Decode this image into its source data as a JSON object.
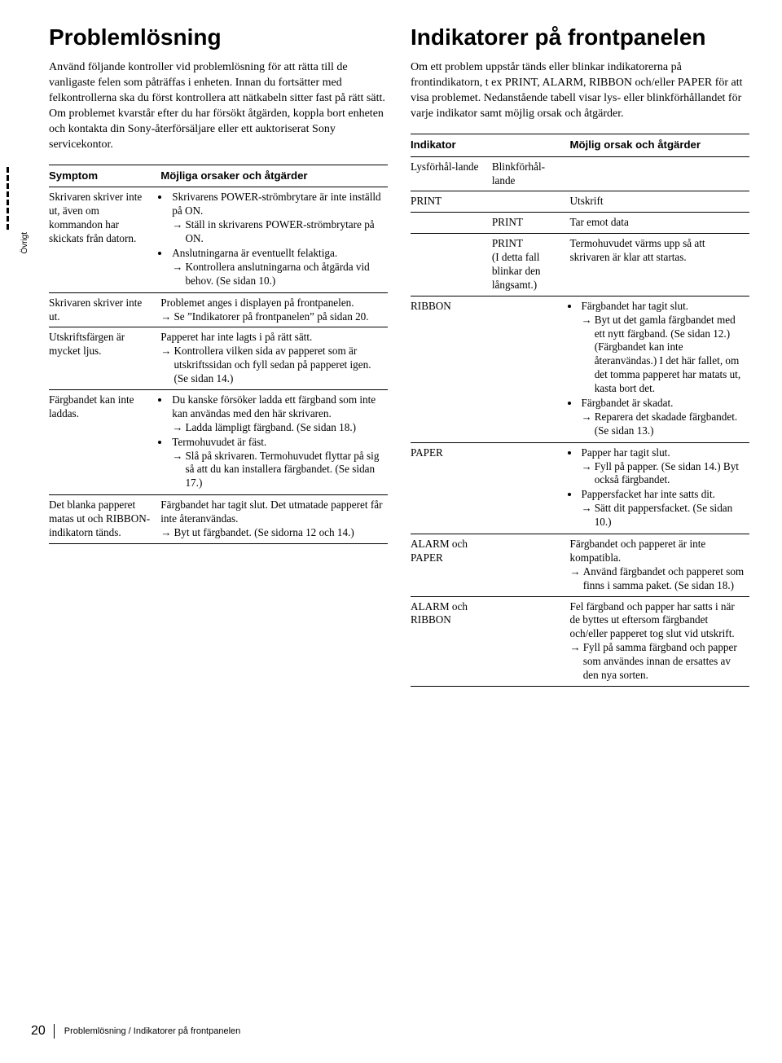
{
  "sidetab": "Övrigt",
  "left": {
    "title": "Problemlösning",
    "intro": "Använd följande kontroller vid problemlösning för att rätta till de vanligaste felen som påträffas i enheten. Innan du fortsätter med felkontrollerna ska du först kontrollera att nätkabeln sitter fast på rätt sätt. Om problemet kvarstår efter du har försökt åtgärden, koppla bort enheten och kontakta din Sony-återförsäljare eller ett auktoriserat Sony servicekontor.",
    "head_symptom": "Symptom",
    "head_cause": "Möjliga orsaker och åtgärder",
    "rows": [
      {
        "symptom": "Skrivaren skriver inte ut, även om kommandon har skickats från datorn.",
        "items": [
          {
            "type": "bullet",
            "text": "Skrivarens POWER-strömbrytare är inte inställd på ON."
          },
          {
            "type": "arrow",
            "text": "Ställ in skrivarens POWER-strömbrytare på ON."
          },
          {
            "type": "bullet",
            "text": "Anslutningarna är eventuellt felaktiga."
          },
          {
            "type": "arrow",
            "text": "Kontrollera anslutningarna och åtgärda vid behov. (Se sidan 10.)"
          }
        ]
      },
      {
        "symptom": "Skrivaren skriver inte ut.",
        "items": [
          {
            "type": "plain",
            "text": "Problemet anges i displayen på frontpanelen."
          },
          {
            "type": "arrow0",
            "text": "Se ”Indikatorer på frontpanelen” på sidan 20."
          }
        ]
      },
      {
        "symptom": "Utskriftsfärgen är mycket ljus.",
        "items": [
          {
            "type": "plain",
            "text": "Papperet har inte lagts i på rätt sätt."
          },
          {
            "type": "arrow0",
            "text": "Kontrollera vilken sida av papperet som är utskriftssidan och fyll sedan på papperet igen. (Se sidan 14.)"
          }
        ]
      },
      {
        "symptom": "Färgbandet kan inte laddas.",
        "items": [
          {
            "type": "bullet",
            "text": "Du kanske försöker ladda ett färgband som inte kan användas med den här skrivaren."
          },
          {
            "type": "arrow",
            "text": "Ladda lämpligt färgband. (Se sidan 18.)"
          },
          {
            "type": "bullet",
            "text": "Termohuvudet är fäst."
          },
          {
            "type": "arrow",
            "text": "Slå på skrivaren. Termohuvudet flyttar på sig så att du kan installera färgbandet. (Se sidan 17.)"
          }
        ]
      },
      {
        "symptom": "Det blanka papperet matas ut och RIBBON-indikatorn tänds.",
        "items": [
          {
            "type": "plain",
            "text": "Färgbandet har tagit slut. Det utmatade papperet får inte återanvändas."
          },
          {
            "type": "arrow0",
            "text": "Byt ut färgbandet. (Se sidorna 12 och 14.)"
          }
        ]
      }
    ]
  },
  "right": {
    "title": "Indikatorer på frontpanelen",
    "intro": "Om ett problem uppstår tänds eller blinkar indikatorerna på frontindikatorn, t ex PRINT, ALARM, RIBBON och/eller PAPER för att visa problemet. Nedanstående tabell visar lys- eller blinkförhållandet för varje indikator samt möjlig orsak och åtgärder.",
    "head_indicator": "Indikator",
    "head_cause": "Möjlig orsak och åtgärder",
    "sub1": "Lysförhål-lande",
    "sub2": "Blinkförhål-lande",
    "rows": [
      {
        "c1": "PRINT",
        "c2": "",
        "c3": [
          {
            "type": "plain",
            "text": "Utskrift"
          }
        ]
      },
      {
        "c1": "",
        "c2": "PRINT",
        "c3": [
          {
            "type": "plain",
            "text": "Tar emot data"
          }
        ]
      },
      {
        "c1": "",
        "c2": "PRINT\n(I detta fall blinkar den långsamt.)",
        "c3": [
          {
            "type": "plain",
            "text": "Termohuvudet värms upp så att skrivaren är klar att startas."
          }
        ]
      },
      {
        "c1": "RIBBON",
        "c2": "",
        "c3": [
          {
            "type": "bullet",
            "text": "Färgbandet har tagit slut."
          },
          {
            "type": "arrow",
            "text": "Byt ut det gamla färgbandet med ett nytt färgband. (Se sidan 12.) (Färgbandet kan inte återanvändas.) I det här fallet, om det tomma papperet har matats ut, kasta bort det."
          },
          {
            "type": "bullet",
            "text": "Färgbandet är skadat."
          },
          {
            "type": "arrow",
            "text": "Reparera det skadade färgbandet. (Se sidan 13.)"
          }
        ]
      },
      {
        "c1": "PAPER",
        "c2": "",
        "c3": [
          {
            "type": "bullet",
            "text": "Papper har tagit slut."
          },
          {
            "type": "arrow",
            "text": "Fyll på papper. (Se sidan 14.) Byt också färgbandet."
          },
          {
            "type": "bullet",
            "text": "Pappersfacket har inte satts dit."
          },
          {
            "type": "arrow",
            "text": "Sätt dit pappersfacket. (Se sidan 10.)"
          }
        ]
      },
      {
        "c1": "ALARM och PAPER",
        "c2": "",
        "c3": [
          {
            "type": "plain",
            "text": "Färgbandet och papperet är inte kompatibla."
          },
          {
            "type": "arrow0",
            "text": "Använd färgbandet och papperet som finns i samma paket. (Se sidan 18.)"
          }
        ]
      },
      {
        "c1": "ALARM och RIBBON",
        "c2": "",
        "c3": [
          {
            "type": "plain",
            "text": "Fel färgband och papper har satts i när de byttes ut eftersom färgbandet och/eller papperet tog slut vid utskrift."
          },
          {
            "type": "arrow0",
            "text": "Fyll på samma färgband och papper som användes innan de ersattes av den nya sorten."
          }
        ]
      }
    ]
  },
  "footer": {
    "page": "20",
    "text": "Problemlösning / Indikatorer på frontpanelen"
  }
}
